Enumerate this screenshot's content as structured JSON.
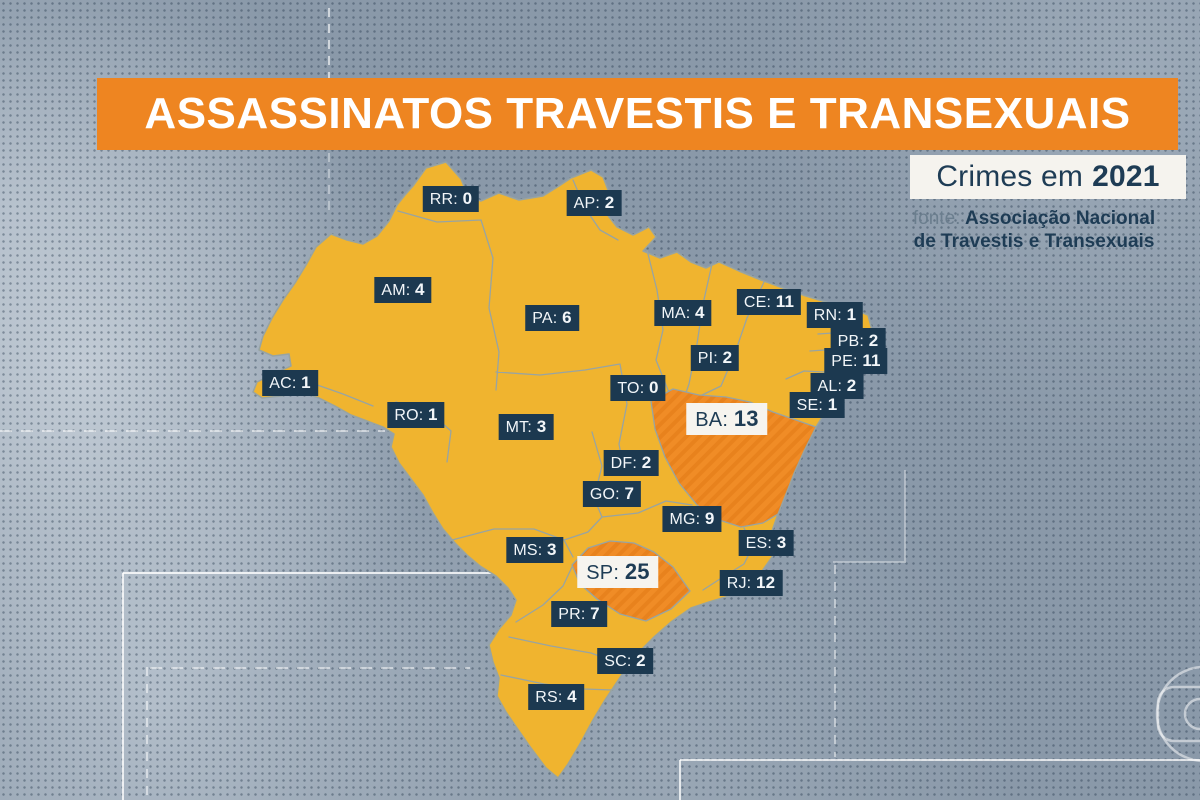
{
  "header": {
    "title": "ASSASSINATOS TRAVESTIS E TRANSEXUAIS"
  },
  "period_box": {
    "prefix": "Crimes em",
    "year": "2021"
  },
  "source": {
    "label": "fonte:",
    "name_line1": "Associação Nacional",
    "name_line2": "de Travestis e Transexuais"
  },
  "map": {
    "title": "Brazil states map",
    "states": [
      {
        "code": "RR",
        "value": 0,
        "highlighted": false
      },
      {
        "code": "AP",
        "value": 2,
        "highlighted": false
      },
      {
        "code": "AM",
        "value": 4,
        "highlighted": false
      },
      {
        "code": "PA",
        "value": 6,
        "highlighted": false
      },
      {
        "code": "MA",
        "value": 4,
        "highlighted": false
      },
      {
        "code": "CE",
        "value": 11,
        "highlighted": false
      },
      {
        "code": "RN",
        "value": 1,
        "highlighted": false
      },
      {
        "code": "PB",
        "value": 2,
        "highlighted": false
      },
      {
        "code": "PE",
        "value": 11,
        "highlighted": false
      },
      {
        "code": "PI",
        "value": 2,
        "highlighted": false
      },
      {
        "code": "AC",
        "value": 1,
        "highlighted": false
      },
      {
        "code": "TO",
        "value": 0,
        "highlighted": false
      },
      {
        "code": "RO",
        "value": 1,
        "highlighted": false
      },
      {
        "code": "MT",
        "value": 3,
        "highlighted": false
      },
      {
        "code": "BA",
        "value": 13,
        "highlighted": true
      },
      {
        "code": "AL",
        "value": 2,
        "highlighted": false
      },
      {
        "code": "SE",
        "value": 1,
        "highlighted": false
      },
      {
        "code": "DF",
        "value": 2,
        "highlighted": false
      },
      {
        "code": "GO",
        "value": 7,
        "highlighted": false
      },
      {
        "code": "MS",
        "value": 3,
        "highlighted": false
      },
      {
        "code": "MG",
        "value": 9,
        "highlighted": false
      },
      {
        "code": "ES",
        "value": 3,
        "highlighted": false
      },
      {
        "code": "SP",
        "value": 25,
        "highlighted": true
      },
      {
        "code": "RJ",
        "value": 12,
        "highlighted": false
      },
      {
        "code": "PR",
        "value": 7,
        "highlighted": false
      },
      {
        "code": "SC",
        "value": 2,
        "highlighted": false
      },
      {
        "code": "RS",
        "value": 4,
        "highlighted": false
      }
    ]
  },
  "watermark": {
    "icon": "globo-logo"
  },
  "colors": {
    "banner_orange": "#ee8521",
    "map_yellow": "#f0b42f",
    "highlight_orange": "#f08c26",
    "highlight_stripe": "#e27a17",
    "label_navy": "#1c3950",
    "text_navy": "#1e3c55",
    "background_blue": "#8a99a9"
  }
}
